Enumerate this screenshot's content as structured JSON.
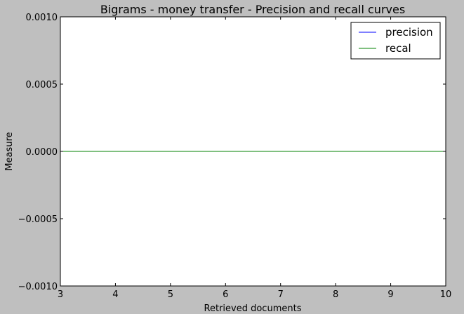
{
  "chart_data": {
    "type": "line",
    "title": "Bigrams - money transfer - Precision and recall curves",
    "xlabel": "Retrieved documents",
    "ylabel": "Measure",
    "xlim": [
      3,
      10
    ],
    "ylim": [
      -0.001,
      0.001
    ],
    "x_ticks": [
      3,
      4,
      5,
      6,
      7,
      8,
      9,
      10
    ],
    "y_ticks": [
      -0.001,
      -0.0005,
      0.0,
      0.0005,
      0.001
    ],
    "x_tick_labels": [
      "3",
      "4",
      "5",
      "6",
      "7",
      "8",
      "9",
      "10"
    ],
    "y_tick_labels": [
      "−0.0010",
      "−0.0005",
      "0.0000",
      "0.0005",
      "0.0010"
    ],
    "grid": false,
    "legend_position": "top-right",
    "x": [
      3,
      4,
      5,
      6,
      7,
      8,
      9,
      10
    ],
    "series": [
      {
        "name": "precision",
        "color": "#0000ff",
        "values": [
          0,
          0,
          0,
          0,
          0,
          0,
          0,
          0
        ]
      },
      {
        "name": "recal",
        "color": "#008000",
        "values": [
          0,
          0,
          0,
          0,
          0,
          0,
          0,
          0
        ]
      }
    ]
  }
}
